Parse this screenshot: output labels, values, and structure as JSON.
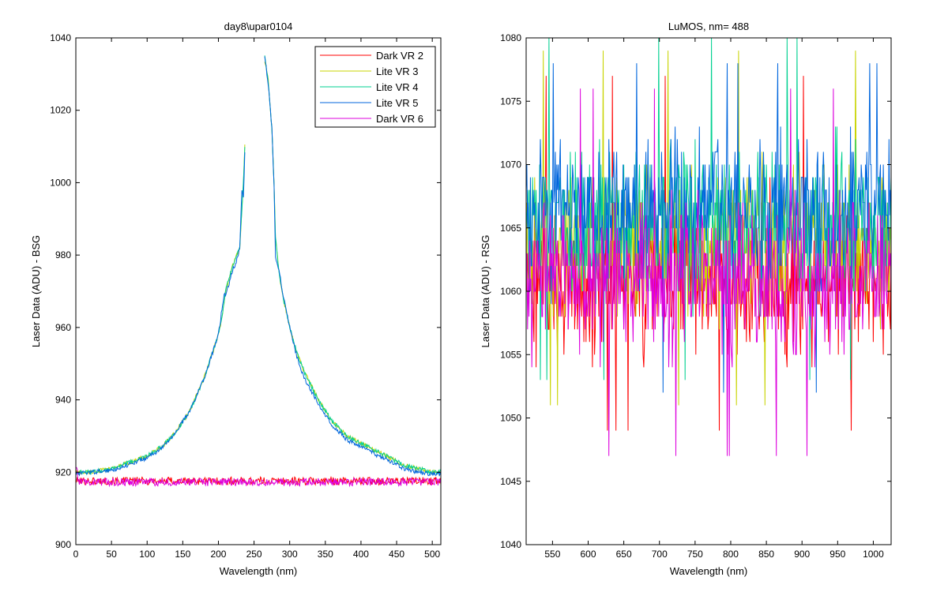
{
  "chart_data": [
    {
      "type": "line",
      "title": "day8\\upar0104",
      "xlabel": "Wavelength (nm)",
      "ylabel": "Laser Data (ADU) - BSG",
      "xlim": [
        0,
        512
      ],
      "ylim": [
        900,
        1040
      ],
      "xticks": [
        "0",
        "50",
        "100",
        "150",
        "200",
        "250",
        "300",
        "350",
        "400",
        "450",
        "500"
      ],
      "yticks": [
        "900",
        "920",
        "940",
        "960",
        "980",
        "1000",
        "1020",
        "1040"
      ],
      "legend_position": "top-right",
      "series": [
        {
          "name": "Dark VR 2",
          "color": "#ff0000",
          "x": [
            0,
            512
          ],
          "y": [
            917.5,
            917.5
          ],
          "note_pattern": "flat noise around 917-918"
        },
        {
          "name": "Lite VR 3",
          "color": "#c8d400",
          "x": [
            0,
            20,
            50,
            80,
            100,
            120,
            140,
            160,
            180,
            200,
            205,
            210,
            220,
            230,
            235,
            237,
            240,
            250,
            260,
            264,
            270,
            275,
            278,
            280,
            285,
            290,
            300,
            310,
            320,
            340,
            360,
            380,
            400,
            420,
            440,
            460,
            480,
            500,
            512
          ],
          "y": [
            920,
            920,
            921,
            923,
            924.5,
            927,
            931,
            937,
            946,
            958,
            963,
            970,
            977,
            982,
            1000,
            1010,
            null,
            null,
            null,
            1035,
            1028,
            1015,
            1000,
            985,
            975,
            969,
            960,
            953,
            948,
            940,
            934,
            930,
            928,
            926,
            924,
            922,
            921,
            920,
            920
          ]
        },
        {
          "name": "Lite VR 4",
          "color": "#00d090",
          "x": [
            0,
            20,
            50,
            80,
            100,
            120,
            140,
            160,
            180,
            200,
            205,
            210,
            220,
            230,
            235,
            237,
            240,
            250,
            260,
            264,
            270,
            275,
            278,
            280,
            285,
            290,
            300,
            310,
            320,
            340,
            360,
            380,
            400,
            420,
            440,
            460,
            480,
            500,
            512
          ],
          "y": [
            920,
            920,
            921,
            923,
            924.5,
            927,
            931,
            937,
            946,
            958,
            963,
            970,
            977,
            982,
            1000,
            1010,
            null,
            null,
            null,
            1036,
            1028,
            1015,
            1000,
            985,
            975,
            969,
            960,
            953,
            948,
            940,
            934,
            930,
            928,
            926,
            924,
            922,
            921,
            920,
            920
          ]
        },
        {
          "name": "Lite VR 5",
          "color": "#0066dd",
          "x": [
            0,
            20,
            50,
            80,
            100,
            120,
            140,
            160,
            180,
            200,
            205,
            208,
            210,
            215,
            220,
            225,
            230,
            233,
            235,
            237,
            240,
            250,
            260,
            264,
            267,
            270,
            273,
            275,
            278,
            280,
            285,
            290,
            300,
            310,
            320,
            340,
            360,
            380,
            400,
            420,
            440,
            460,
            480,
            500,
            512
          ],
          "y": [
            919.5,
            920,
            920.5,
            922.5,
            924,
            926.5,
            931,
            937,
            946,
            958,
            965,
            969,
            969,
            972,
            976,
            978,
            982,
            998,
            996,
            1008,
            null,
            null,
            null,
            1036,
            1032,
            1027,
            1020,
            1015,
            1000,
            979,
            976,
            970,
            960,
            952,
            946,
            939,
            933,
            929,
            927,
            925,
            923,
            921,
            920,
            919.5,
            919.5
          ]
        },
        {
          "name": "Dark VR 6",
          "color": "#dd00dd",
          "x": [
            0,
            512
          ],
          "y": [
            917.5,
            917.5
          ],
          "note_pattern": "flat noise around 916-918"
        }
      ]
    },
    {
      "type": "line",
      "title": "LuMOS, nm= 488",
      "xlabel": "Wavelength (nm)",
      "ylabel": "Laser Data (ADU) - RSG",
      "xlim": [
        513,
        1025
      ],
      "ylim": [
        1040,
        1080
      ],
      "xticks": [
        "550",
        "600",
        "650",
        "700",
        "750",
        "800",
        "850",
        "900",
        "950",
        "1000"
      ],
      "yticks": [
        "1040",
        "1045",
        "1050",
        "1055",
        "1060",
        "1065",
        "1070",
        "1075",
        "1080"
      ],
      "series": [
        {
          "color": "#ff0000",
          "center": 1061,
          "min": 1049,
          "max": 1077
        },
        {
          "color": "#c8d400",
          "center": 1064,
          "min": 1051,
          "max": 1079
        },
        {
          "color": "#00d090",
          "center": 1065.5,
          "min": 1053,
          "max": 1080
        },
        {
          "color": "#0066dd",
          "center": 1066,
          "min": 1052,
          "max": 1078
        },
        {
          "color": "#dd00dd",
          "center": 1061,
          "min": 1047,
          "max": 1076
        }
      ]
    }
  ]
}
